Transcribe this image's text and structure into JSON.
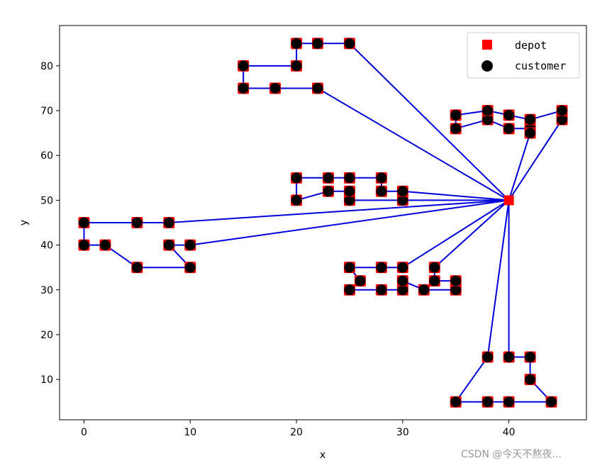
{
  "chart_data": {
    "type": "scatter",
    "xlabel": "x",
    "ylabel": "y",
    "xlim": [
      -2.3,
      47.3
    ],
    "ylim": [
      1,
      89
    ],
    "x_ticks": [
      0,
      10,
      20,
      30,
      40
    ],
    "y_ticks": [
      10,
      20,
      30,
      40,
      50,
      60,
      70,
      80
    ],
    "grid": false,
    "legend_position": "top-right",
    "legend": [
      {
        "label": "depot",
        "marker": "square",
        "color": "#ff0000"
      },
      {
        "label": "customer",
        "marker": "circle",
        "color": "#000000"
      }
    ],
    "depot": [
      40,
      50
    ],
    "route_color": "#0000dd",
    "customers": [
      [
        45,
        68
      ],
      [
        45,
        70
      ],
      [
        42,
        66
      ],
      [
        42,
        68
      ],
      [
        42,
        65
      ],
      [
        40,
        69
      ],
      [
        40,
        66
      ],
      [
        38,
        68
      ],
      [
        38,
        70
      ],
      [
        35,
        66
      ],
      [
        35,
        69
      ],
      [
        25,
        85
      ],
      [
        22,
        75
      ],
      [
        22,
        85
      ],
      [
        20,
        80
      ],
      [
        20,
        85
      ],
      [
        18,
        75
      ],
      [
        15,
        75
      ],
      [
        15,
        80
      ],
      [
        30,
        50
      ],
      [
        30,
        52
      ],
      [
        28,
        52
      ],
      [
        28,
        55
      ],
      [
        25,
        50
      ],
      [
        25,
        52
      ],
      [
        25,
        55
      ],
      [
        23,
        52
      ],
      [
        23,
        55
      ],
      [
        20,
        50
      ],
      [
        20,
        55
      ],
      [
        10,
        35
      ],
      [
        10,
        40
      ],
      [
        8,
        40
      ],
      [
        8,
        45
      ],
      [
        5,
        35
      ],
      [
        5,
        45
      ],
      [
        2,
        40
      ],
      [
        0,
        40
      ],
      [
        0,
        45
      ],
      [
        35,
        30
      ],
      [
        35,
        32
      ],
      [
        33,
        32
      ],
      [
        33,
        35
      ],
      [
        32,
        30
      ],
      [
        30,
        30
      ],
      [
        30,
        32
      ],
      [
        30,
        35
      ],
      [
        28,
        30
      ],
      [
        28,
        35
      ],
      [
        26,
        32
      ],
      [
        25,
        30
      ],
      [
        25,
        35
      ],
      [
        44,
        5
      ],
      [
        42,
        10
      ],
      [
        42,
        15
      ],
      [
        40,
        5
      ],
      [
        40,
        15
      ],
      [
        38,
        5
      ],
      [
        38,
        15
      ],
      [
        35,
        5
      ]
    ],
    "routes": [
      [
        [
          40,
          50
        ],
        [
          45,
          68
        ],
        [
          45,
          70
        ],
        [
          42,
          68
        ],
        [
          40,
          69
        ],
        [
          38,
          70
        ],
        [
          35,
          69
        ],
        [
          35,
          66
        ],
        [
          38,
          68
        ],
        [
          40,
          66
        ],
        [
          42,
          66
        ],
        [
          42,
          65
        ],
        [
          40,
          50
        ]
      ],
      [
        [
          40,
          50
        ],
        [
          25,
          85
        ],
        [
          22,
          85
        ],
        [
          20,
          85
        ],
        [
          20,
          80
        ],
        [
          15,
          80
        ],
        [
          15,
          75
        ],
        [
          18,
          75
        ],
        [
          22,
          75
        ],
        [
          40,
          50
        ]
      ],
      [
        [
          40,
          50
        ],
        [
          30,
          52
        ],
        [
          28,
          52
        ],
        [
          28,
          55
        ],
        [
          25,
          55
        ],
        [
          23,
          55
        ],
        [
          20,
          55
        ],
        [
          20,
          50
        ],
        [
          23,
          52
        ],
        [
          25,
          52
        ],
        [
          25,
          50
        ],
        [
          30,
          50
        ],
        [
          40,
          50
        ]
      ],
      [
        [
          40,
          50
        ],
        [
          10,
          40
        ],
        [
          8,
          40
        ],
        [
          10,
          35
        ],
        [
          5,
          35
        ],
        [
          2,
          40
        ],
        [
          0,
          40
        ],
        [
          0,
          45
        ],
        [
          5,
          45
        ],
        [
          8,
          45
        ],
        [
          40,
          50
        ]
      ],
      [
        [
          40,
          50
        ],
        [
          33,
          35
        ],
        [
          33,
          32
        ],
        [
          35,
          32
        ],
        [
          35,
          30
        ],
        [
          32,
          30
        ],
        [
          30,
          32
        ],
        [
          30,
          30
        ],
        [
          28,
          30
        ],
        [
          25,
          30
        ],
        [
          26,
          32
        ],
        [
          25,
          35
        ],
        [
          28,
          35
        ],
        [
          30,
          35
        ],
        [
          40,
          50
        ]
      ],
      [
        [
          40,
          50
        ],
        [
          40,
          15
        ],
        [
          42,
          15
        ],
        [
          42,
          10
        ],
        [
          44,
          5
        ],
        [
          40,
          5
        ],
        [
          38,
          5
        ],
        [
          35,
          5
        ],
        [
          38,
          15
        ],
        [
          40,
          50
        ]
      ]
    ]
  },
  "watermark": "CSDN @今天不熬夜..."
}
